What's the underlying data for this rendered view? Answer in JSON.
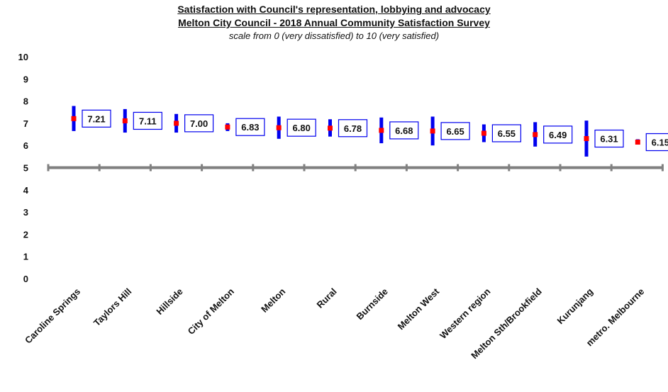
{
  "chart_data": {
    "type": "scatter",
    "title": "Satisfaction  with Council's representation, lobbying and advocacy",
    "subtitle": "Melton City Council - 2018 Annual Community Satisfaction Survey",
    "note": "scale from 0 (very dissatisfied) to 10 (very satisfied)",
    "ylim": [
      0,
      10
    ],
    "yticks": [
      "0",
      "1",
      "2",
      "3",
      "4",
      "5",
      "6",
      "7",
      "8",
      "9",
      "10"
    ],
    "reference_line": 5,
    "grid": false,
    "categories": [
      "Caroline Springs",
      "Taylors Hill",
      "Hillside",
      "City of Melton",
      "Melton",
      "Rural",
      "Burnside",
      "Melton West",
      "Western region",
      "Melton Sth/Brookfield",
      "Kurunjang",
      "metro. Melbourne"
    ],
    "values": [
      7.21,
      7.11,
      7.0,
      6.83,
      6.8,
      6.78,
      6.68,
      6.65,
      6.55,
      6.49,
      6.31,
      6.15
    ],
    "labels": [
      "7.21",
      "7.11",
      "7.00",
      "6.83",
      "6.80",
      "6.78",
      "6.68",
      "6.65",
      "6.55",
      "6.49",
      "6.31",
      "6.15"
    ],
    "ci_low": [
      6.65,
      6.58,
      6.58,
      6.65,
      6.3,
      6.4,
      6.1,
      6.0,
      6.15,
      5.95,
      5.5,
      6.05
    ],
    "ci_high": [
      7.78,
      7.64,
      7.42,
      7.0,
      7.3,
      7.18,
      7.26,
      7.3,
      6.95,
      7.05,
      7.12,
      6.28
    ],
    "colors": {
      "interval": "#0000ee",
      "point": "#ff0000",
      "label_border": "#0000ee",
      "axis": "#808080"
    }
  }
}
